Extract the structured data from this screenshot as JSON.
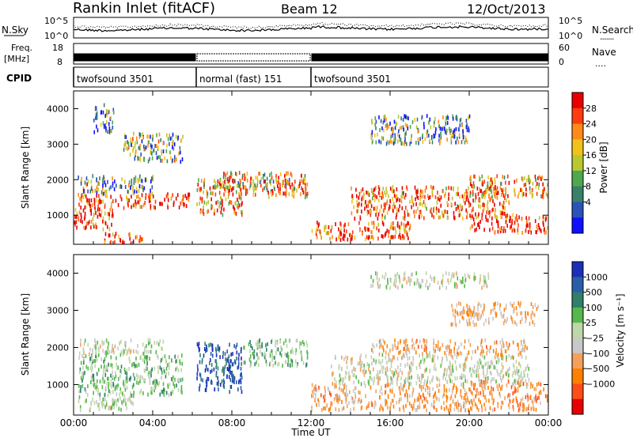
{
  "header": {
    "station": "Rankin Inlet (fitACF)",
    "beam": "Beam 12",
    "date": "12/Oct/2013"
  },
  "noise_panel": {
    "left_label": "N.Sky",
    "left_ticks": [
      "10^5",
      "10^0"
    ],
    "right_ticks": [
      "10^5",
      "10^0"
    ],
    "right_label": "N.Search",
    "right_legend_glyph": "......."
  },
  "freq_panel": {
    "left_label_line1": "Freq.",
    "left_label_line2": "[MHz]",
    "left_ticks": [
      "18",
      "8"
    ],
    "right_ticks": [
      "60",
      "0"
    ],
    "right_label": "Nave",
    "right_legend_glyph": "...."
  },
  "cpid_panel": {
    "label": "CPID",
    "segments": [
      {
        "start_h": 0,
        "end_h": 6.2,
        "text": "twofsound 3501"
      },
      {
        "start_h": 6.2,
        "end_h": 12.0,
        "text": "normal (fast) 151"
      },
      {
        "start_h": 12.0,
        "end_h": 24,
        "text": "twofsound 3501"
      }
    ]
  },
  "chart_data": [
    {
      "type": "heatmap",
      "title": "",
      "ylabel": "Slant Range [km]",
      "xlabel": "",
      "y_ticks": [
        "1000",
        "2000",
        "3000",
        "4000"
      ],
      "ylim": [
        180,
        4500
      ],
      "xlim": [
        0,
        24
      ],
      "colorbar": {
        "label": "Power [dB]",
        "ticks": [
          "4",
          "8",
          "12",
          "16",
          "20",
          "24",
          "28"
        ],
        "range": [
          0,
          30
        ],
        "colors": [
          "#1010ff",
          "#2a52b8",
          "#3a7f6a",
          "#4ea84e",
          "#b8c830",
          "#f2c21a",
          "#ff8a1a",
          "#ff3b10",
          "#e80000"
        ]
      },
      "regions": [
        {
          "t0": 0.0,
          "t1": 2.0,
          "r0": 600,
          "r1": 1200,
          "level": 27
        },
        {
          "t0": 1.5,
          "t1": 3.5,
          "r0": 200,
          "r1": 500,
          "level": 26
        },
        {
          "t0": 0.2,
          "t1": 6.0,
          "r0": 1200,
          "r1": 1600,
          "level": 26
        },
        {
          "t0": 0.2,
          "t1": 4.0,
          "r0": 1600,
          "r1": 2100,
          "level": 10
        },
        {
          "t0": 2.5,
          "t1": 5.5,
          "r0": 2500,
          "r1": 3300,
          "level": 12
        },
        {
          "t0": 1.0,
          "t1": 2.0,
          "r0": 3300,
          "r1": 4100,
          "level": 6
        },
        {
          "t0": 6.2,
          "t1": 8.5,
          "r0": 1000,
          "r1": 2000,
          "level": 21
        },
        {
          "t0": 7.5,
          "t1": 11.8,
          "r0": 1500,
          "r1": 2200,
          "level": 17
        },
        {
          "t0": 10.5,
          "t1": 11.8,
          "r0": 1600,
          "r1": 2000,
          "level": 27
        },
        {
          "t0": 12.0,
          "t1": 17.0,
          "r0": 300,
          "r1": 800,
          "level": 26
        },
        {
          "t0": 14.0,
          "t1": 22.0,
          "r0": 900,
          "r1": 1800,
          "level": 25
        },
        {
          "t0": 20.0,
          "t1": 24.0,
          "r0": 500,
          "r1": 1000,
          "level": 28
        },
        {
          "t0": 20.0,
          "t1": 24.0,
          "r0": 1500,
          "r1": 2100,
          "level": 20
        },
        {
          "t0": 15.0,
          "t1": 20.0,
          "r0": 3000,
          "r1": 3800,
          "level": 10
        }
      ]
    },
    {
      "type": "heatmap",
      "title": "",
      "ylabel": "Slant Range [km]",
      "xlabel": "Time UT",
      "x_ticks": [
        "00:00",
        "04:00",
        "08:00",
        "12:00",
        "16:00",
        "20:00",
        "00:00"
      ],
      "y_ticks": [
        "1000",
        "2000",
        "3000",
        "4000"
      ],
      "ylim": [
        180,
        4500
      ],
      "xlim": [
        0,
        24
      ],
      "colorbar": {
        "label": "Velocity [m s⁻¹]",
        "ticks": [
          "1000",
          "500",
          "100",
          "25",
          "−25",
          "−100",
          "−500",
          "−1000"
        ],
        "range": [
          -1200,
          1200
        ],
        "colors": [
          "#1a30b8",
          "#2a5fa8",
          "#2f7f6a",
          "#55b84a",
          "#bfd6a8",
          "#c8c8c8",
          "#f5a05a",
          "#ff7f00",
          "#ff4d1a",
          "#e80000"
        ]
      },
      "regions": [
        {
          "t0": 0.2,
          "t1": 5.5,
          "r0": 700,
          "r1": 1800,
          "level": 300
        },
        {
          "t0": 0.2,
          "t1": 4.5,
          "r0": 1800,
          "r1": 2200,
          "level": 0
        },
        {
          "t0": 0.2,
          "t1": 3.0,
          "r0": 300,
          "r1": 700,
          "level": 80
        },
        {
          "t0": 6.2,
          "t1": 8.5,
          "r0": 800,
          "r1": 2100,
          "level": 900
        },
        {
          "t0": 8.5,
          "t1": 11.8,
          "r0": 1500,
          "r1": 2200,
          "level": 300
        },
        {
          "t0": 12.0,
          "t1": 20.0,
          "r0": 300,
          "r1": 1000,
          "level": -400
        },
        {
          "t0": 13.0,
          "t1": 23.0,
          "r0": 1000,
          "r1": 1800,
          "level": 0
        },
        {
          "t0": 15.0,
          "t1": 23.0,
          "r0": 1800,
          "r1": 2200,
          "level": -400
        },
        {
          "t0": 20.0,
          "t1": 24.0,
          "r0": 300,
          "r1": 1100,
          "level": -500
        },
        {
          "t0": 19.0,
          "t1": 23.5,
          "r0": 2600,
          "r1": 3200,
          "level": -350
        },
        {
          "t0": 15.0,
          "t1": 21.0,
          "r0": 3600,
          "r1": 4000,
          "level": 0
        }
      ]
    }
  ]
}
